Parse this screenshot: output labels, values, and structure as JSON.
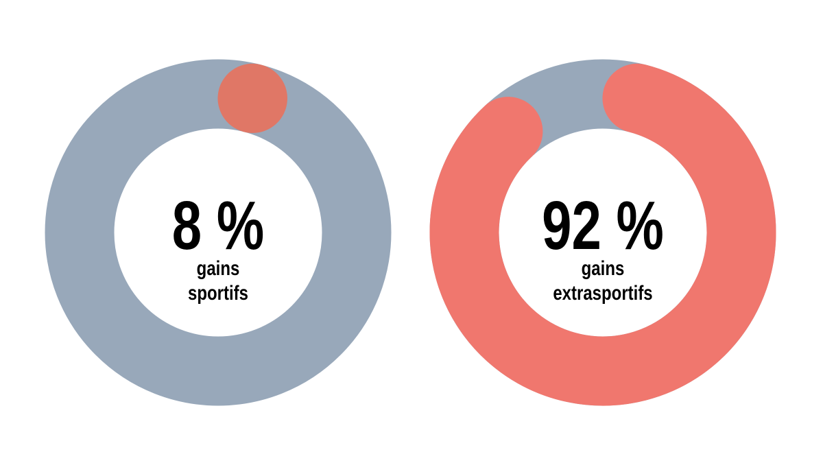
{
  "chart_data": [
    {
      "type": "donut",
      "values": [
        8
      ],
      "value_labels": [
        "8 %"
      ],
      "label_lines": [
        "gains",
        "sportifs"
      ],
      "color": "#e07766",
      "track_color": "#98a8ba"
    },
    {
      "type": "donut",
      "values": [
        92
      ],
      "value_labels": [
        "92 %"
      ],
      "label_lines": [
        "gains",
        "extrasportifs"
      ],
      "color": "#f0776e",
      "track_color": "#98a8ba"
    }
  ]
}
